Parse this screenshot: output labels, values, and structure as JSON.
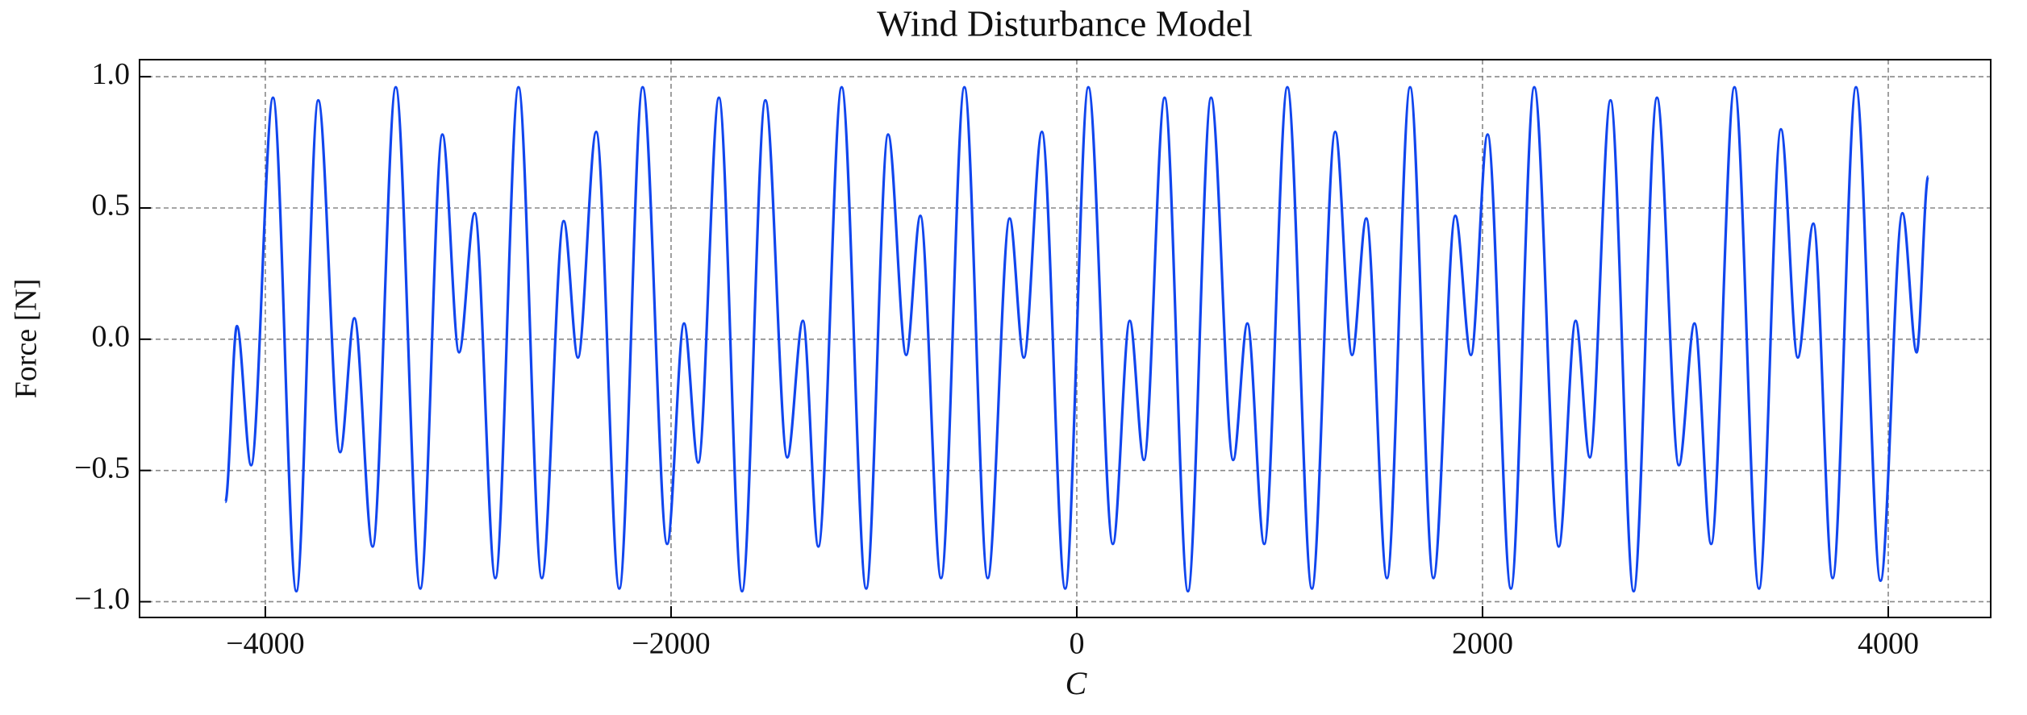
{
  "chart_data": {
    "type": "line",
    "title": "Wind Disturbance Model",
    "x_label": "C",
    "y_label": "Force [N]",
    "x": [
      -4197,
      -4140,
      -4070,
      -3962,
      -3847,
      -3739,
      -3631,
      -3561,
      -3471,
      -3357,
      -3236,
      -3127,
      -3045,
      -2968,
      -2866,
      -2752,
      -2637,
      -2529,
      -2459,
      -2369,
      -2255,
      -2140,
      -2019,
      -1936,
      -1866,
      -1764,
      -1650,
      -1535,
      -1427,
      -1350,
      -1274,
      -1159,
      -1038,
      -930,
      -841,
      -771,
      -669,
      -554,
      -439,
      -331,
      -261,
      -172,
      -57,
      57,
      178,
      261,
      331,
      433,
      548,
      662,
      771,
      841,
      924,
      1038,
      1159,
      1274,
      1357,
      1427,
      1529,
      1643,
      1758,
      1866,
      1943,
      2025,
      2140,
      2255,
      2376,
      2459,
      2529,
      2631,
      2745,
      2860,
      2968,
      3045,
      3127,
      3242,
      3363,
      3471,
      3554,
      3631,
      3726,
      3841,
      3962,
      4070,
      4140,
      4197
    ],
    "series": [
      {
        "color": "#1146ee",
        "values": [
          -0.62,
          0.05,
          -0.48,
          0.92,
          -0.96,
          0.91,
          -0.43,
          0.08,
          -0.79,
          0.96,
          -0.95,
          0.78,
          -0.05,
          0.48,
          -0.91,
          0.96,
          -0.91,
          0.45,
          -0.07,
          0.79,
          -0.95,
          0.96,
          -0.78,
          0.06,
          -0.47,
          0.92,
          -0.96,
          0.91,
          -0.45,
          0.07,
          -0.79,
          0.96,
          -0.95,
          0.78,
          -0.06,
          0.47,
          -0.91,
          0.96,
          -0.91,
          0.46,
          -0.07,
          0.79,
          -0.95,
          0.96,
          -0.78,
          0.07,
          -0.46,
          0.92,
          -0.96,
          0.92,
          -0.46,
          0.06,
          -0.78,
          0.96,
          -0.95,
          0.79,
          -0.06,
          0.46,
          -0.91,
          0.96,
          -0.91,
          0.47,
          -0.06,
          0.78,
          -0.95,
          0.96,
          -0.79,
          0.07,
          -0.45,
          0.91,
          -0.96,
          0.92,
          -0.48,
          0.06,
          -0.78,
          0.96,
          -0.95,
          0.8,
          -0.07,
          0.44,
          -0.91,
          0.96,
          -0.92,
          0.48,
          -0.05,
          0.62
        ]
      }
    ],
    "xlim": [
      -4620,
      4505
    ],
    "ylim": [
      -1.06,
      1.065
    ],
    "xticks": [
      {
        "value": -4000,
        "label": "−4000"
      },
      {
        "value": -2000,
        "label": "−2000"
      },
      0,
      2000,
      4000
    ],
    "yticks": [
      {
        "value": -1,
        "label": "−1.0"
      },
      {
        "value": -0.5,
        "label": "−0.5"
      },
      {
        "value": 0,
        "label": "0.0"
      },
      0.5,
      {
        "value": 1,
        "label": "1.0"
      }
    ],
    "grid": true
  }
}
